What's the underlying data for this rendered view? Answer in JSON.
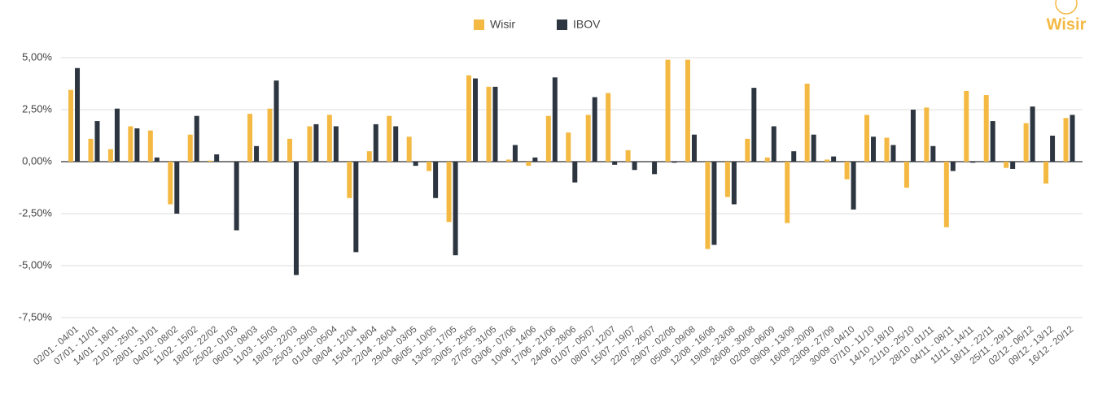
{
  "brand": "Wisir",
  "chart_data": {
    "type": "bar",
    "categories": [
      "02/01 - 04/01",
      "07/01 - 11/01",
      "14/01 - 18/01",
      "21/01 - 25/01",
      "28/01 - 31/01",
      "04/02 - 08/02",
      "11/02 - 15/02",
      "18/02 - 22/02",
      "25/02 - 01/03",
      "06/03 - 08/03",
      "11/03 - 15/03",
      "18/03 - 22/03",
      "25/03 - 29/03",
      "01/04 - 05/04",
      "08/04 - 12/04",
      "15/04 - 18/04",
      "22/04 - 26/04",
      "29/04 - 03/05",
      "06/05 - 10/05",
      "13/05 - 17/05",
      "20/05 - 25/05",
      "27/05 - 31/05",
      "03/06 - 07/06",
      "10/06 - 14/06",
      "17/06 - 21/06",
      "24/06 - 28/06",
      "01/07 - 05/07",
      "08/07 - 12/07",
      "15/07 - 19/07",
      "22/07 - 26/07",
      "29/07 - 02/08",
      "05/08 - 09/08",
      "12/08 - 16/08",
      "19/08 - 23/08",
      "26/08 - 30/08",
      "02/09 - 06/09",
      "09/09 - 13/09",
      "16/09 - 20/09",
      "23/09 - 27/09",
      "30/09 - 04/10",
      "07/10 - 11/10",
      "14/10 - 18/10",
      "21/10 - 25/10",
      "28/10 - 01/11",
      "04/11 - 08/11",
      "11/11 - 14/11",
      "18/11 - 22/11",
      "25/11 - 29/11",
      "02/12 - 06/12",
      "09/12 - 13/12",
      "16/12 - 20/12"
    ],
    "series": [
      {
        "name": "Wisir",
        "color": "#f4b942",
        "values": [
          3.45,
          1.1,
          0.6,
          1.7,
          1.5,
          -2.05,
          1.3,
          0.05,
          0,
          2.3,
          2.55,
          1.1,
          1.7,
          2.25,
          -1.75,
          0.5,
          2.2,
          1.2,
          -0.45,
          -2.9,
          4.15,
          3.6,
          0.1,
          -0.2,
          2.2,
          1.4,
          2.25,
          3.3,
          0.55,
          0,
          4.9,
          4.9,
          -4.2,
          -1.7,
          1.1,
          0.2,
          -2.95,
          3.75,
          0.1,
          -0.85,
          2.25,
          1.15,
          -1.25,
          2.6,
          -3.15,
          3.4,
          3.2,
          -0.3,
          1.85,
          -1.05,
          2.1
        ]
      },
      {
        "name": "IBOV",
        "color": "#2d3640",
        "values": [
          4.5,
          1.95,
          2.55,
          1.6,
          0.2,
          -2.5,
          2.2,
          0.35,
          -3.3,
          0.75,
          3.9,
          -5.45,
          1.8,
          1.7,
          -4.35,
          1.8,
          1.7,
          -0.2,
          -1.75,
          -4.5,
          4.0,
          3.6,
          0.8,
          0.2,
          4.05,
          -1.0,
          3.1,
          -0.15,
          -0.4,
          -0.6,
          -0.05,
          1.3,
          -4.0,
          -2.05,
          3.55,
          1.7,
          0.5,
          1.3,
          0.25,
          -2.3,
          1.2,
          0.8,
          2.5,
          0.75,
          -0.45,
          -0.05,
          1.95,
          -0.35,
          2.65,
          1.25,
          2.25
        ]
      }
    ],
    "ylim": [
      -7.6,
      5.6
    ],
    "yticks": [
      {
        "value": -7.5,
        "label": "-7,50%"
      },
      {
        "value": -5,
        "label": "-5,00%"
      },
      {
        "value": -2.5,
        "label": "-2,50%"
      },
      {
        "value": 0,
        "label": "0,00%"
      },
      {
        "value": 2.5,
        "label": "2,50%"
      },
      {
        "value": 5,
        "label": "5,00%"
      }
    ],
    "grid": true,
    "legend": "top"
  }
}
